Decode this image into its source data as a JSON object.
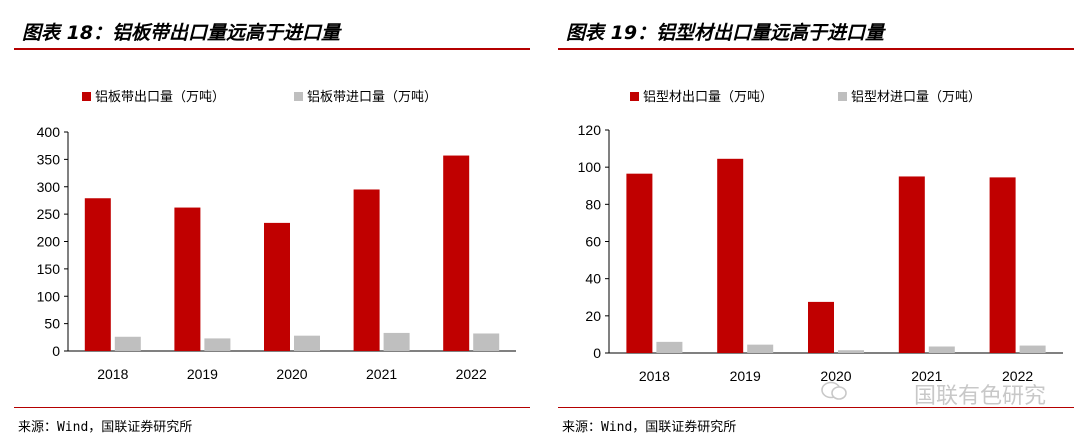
{
  "charts": [
    {
      "title": "图表 18：铝板带出口量远高于进口量",
      "source": "来源：Wind，国联证券研究所",
      "chart_data": {
        "type": "bar",
        "categories": [
          "2018",
          "2019",
          "2020",
          "2021",
          "2022"
        ],
        "series": [
          {
            "name": "铝板带出口量（万吨）",
            "color": "#c00000",
            "values": [
              279,
              262,
              234,
              295,
              357
            ]
          },
          {
            "name": "铝板带进口量（万吨）",
            "color": "#bfbfbf",
            "values": [
              26,
              23,
              28,
              33,
              32
            ]
          }
        ],
        "ylim": [
          0,
          400
        ],
        "yticks": [
          "0",
          "50",
          "100",
          "150",
          "200",
          "250",
          "300",
          "350",
          "400"
        ],
        "grid": false,
        "legend": "top"
      }
    },
    {
      "title": "图表 19：铝型材出口量远高于进口量",
      "source": "来源：Wind，国联证券研究所",
      "chart_data": {
        "type": "bar",
        "categories": [
          "2018",
          "2019",
          "2020",
          "2021",
          "2022"
        ],
        "series": [
          {
            "name": "铝型材出口量（万吨）",
            "color": "#c00000",
            "values": [
              96.5,
              104.5,
              27.5,
              95,
              94.5
            ]
          },
          {
            "name": "铝型材进口量（万吨）",
            "color": "#bfbfbf",
            "values": [
              6,
              4.5,
              1.5,
              3.5,
              4
            ]
          }
        ],
        "ylim": [
          0,
          120
        ],
        "yticks": [
          "0",
          "20",
          "40",
          "60",
          "80",
          "100",
          "120"
        ],
        "grid": false,
        "legend": "top"
      }
    }
  ],
  "watermark": "国联有色研究"
}
